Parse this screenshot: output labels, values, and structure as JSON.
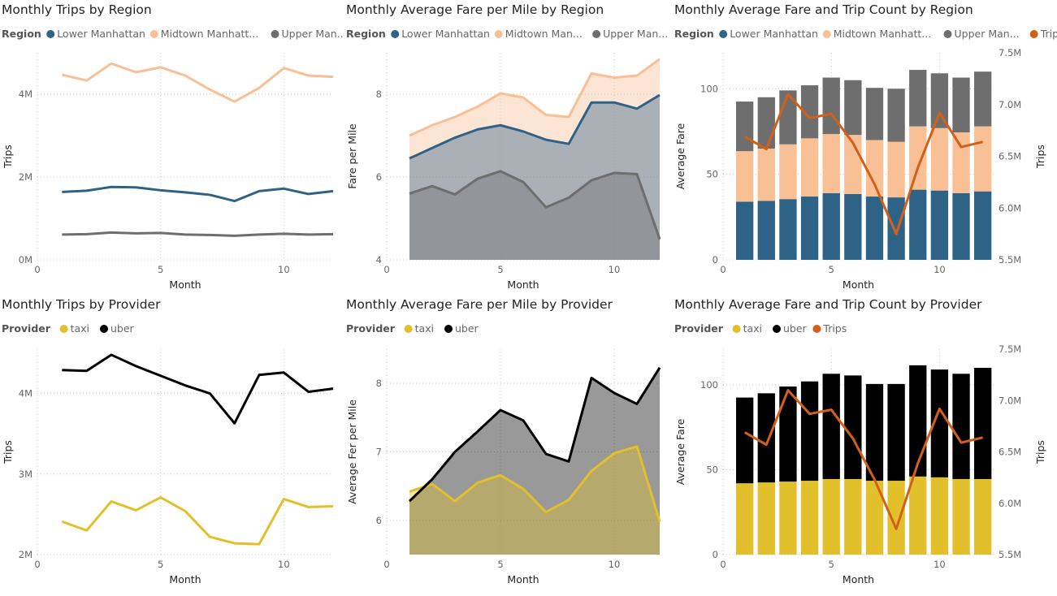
{
  "colors": {
    "lower": "#2E6287",
    "midtown": "#F9BF95",
    "upper": "#6E6E6E",
    "taxi": "#E2C02B",
    "uber": "#000000",
    "trips": "#D26019",
    "gridline": "#c8c8c8",
    "axis_text": "#666666",
    "title_text": "#252423"
  },
  "chart_data": [
    {
      "type": "line",
      "title": "Monthly Trips by Region",
      "legend_title": "Region",
      "xlabel": "Month",
      "ylabel": "Trips",
      "x": [
        1,
        2,
        3,
        4,
        5,
        6,
        7,
        8,
        9,
        10,
        11,
        12
      ],
      "xlim": [
        0,
        12
      ],
      "xticks": [
        "0",
        "5",
        "10"
      ],
      "ylim": [
        0,
        5000000
      ],
      "yticks": [
        {
          "v": 0,
          "label": "0M"
        },
        {
          "v": 2000000,
          "label": "2M"
        },
        {
          "v": 4000000,
          "label": "4M"
        }
      ],
      "series": [
        {
          "name": "Lower Manhattan",
          "legend_label": "Lower Manhattan",
          "color_key": "lower",
          "values": [
            1640000,
            1670000,
            1760000,
            1750000,
            1680000,
            1630000,
            1570000,
            1420000,
            1660000,
            1720000,
            1590000,
            1660000
          ]
        },
        {
          "name": "Midtown Manhattan",
          "legend_label": "Midtown Manhatt...",
          "color_key": "midtown",
          "values": [
            4470000,
            4330000,
            4740000,
            4530000,
            4650000,
            4450000,
            4110000,
            3820000,
            4150000,
            4630000,
            4450000,
            4420000
          ]
        },
        {
          "name": "Upper Manhattan",
          "legend_label": "Upper Man...",
          "color_key": "upper",
          "values": [
            610000,
            620000,
            660000,
            640000,
            650000,
            610000,
            600000,
            580000,
            610000,
            630000,
            610000,
            620000
          ]
        }
      ]
    },
    {
      "type": "area",
      "title": "Monthly Average Fare per Mile by Region",
      "legend_title": "Region",
      "xlabel": "Month",
      "ylabel": "Fare per Mile",
      "x": [
        1,
        2,
        3,
        4,
        5,
        6,
        7,
        8,
        9,
        10,
        11,
        12
      ],
      "xlim": [
        0,
        12
      ],
      "xticks": [
        "0",
        "5",
        "10"
      ],
      "ylim": [
        4,
        9
      ],
      "yticks": [
        {
          "v": 4,
          "label": "4"
        },
        {
          "v": 6,
          "label": "6"
        },
        {
          "v": 8,
          "label": "8"
        }
      ],
      "series": [
        {
          "name": "Lower Manhattan",
          "legend_label": "Lower Manhattan",
          "color_key": "lower",
          "values": [
            6.45,
            6.7,
            6.95,
            7.15,
            7.25,
            7.1,
            6.9,
            6.8,
            7.8,
            7.8,
            7.65,
            7.98
          ]
        },
        {
          "name": "Midtown Manhattan",
          "legend_label": "Midtown Man...",
          "color_key": "midtown",
          "values": [
            7.0,
            7.25,
            7.45,
            7.7,
            8.02,
            7.92,
            7.5,
            7.45,
            8.5,
            8.4,
            8.45,
            8.85
          ]
        },
        {
          "name": "Upper Manhattan",
          "legend_label": "Upper Man...",
          "color_key": "upper",
          "values": [
            5.6,
            5.78,
            5.58,
            5.96,
            6.14,
            5.88,
            5.27,
            5.5,
            5.92,
            6.1,
            6.07,
            4.5
          ]
        }
      ]
    },
    {
      "type": "bar",
      "stacked": true,
      "title": "Monthly Average Fare and Trip Count by Region",
      "legend_title": "Region",
      "xlabel": "Month",
      "ylabel": "Average Fare",
      "y2label": "Trips",
      "x": [
        1,
        2,
        3,
        4,
        5,
        6,
        7,
        8,
        9,
        10,
        11,
        12
      ],
      "xlim": [
        0,
        12.5
      ],
      "xticks": [
        "0",
        "5",
        "10"
      ],
      "ylim": [
        0,
        121
      ],
      "yticks": [
        {
          "v": 0,
          "label": "0"
        },
        {
          "v": 50,
          "label": "50"
        },
        {
          "v": 100,
          "label": "100"
        }
      ],
      "y2lim": [
        5500000,
        7500000
      ],
      "y2ticks": [
        {
          "v": 5500000,
          "label": "5.5M"
        },
        {
          "v": 6000000,
          "label": "6.0M"
        },
        {
          "v": 6500000,
          "label": "6.5M"
        },
        {
          "v": 7000000,
          "label": "7.0M"
        },
        {
          "v": 7500000,
          "label": "7.5M"
        }
      ],
      "series": [
        {
          "name": "Lower Manhattan",
          "legend_label": "Lower Manhattan",
          "color_key": "lower",
          "values": [
            34,
            34.5,
            35.5,
            37,
            39,
            38.5,
            37,
            36.5,
            41,
            40.5,
            39,
            40
          ]
        },
        {
          "name": "Midtown Manhattan",
          "legend_label": "Midtown Manhatt...",
          "color_key": "midtown",
          "values": [
            29.5,
            30.5,
            32,
            34,
            34.5,
            34.5,
            33,
            32.5,
            37,
            36.5,
            35.5,
            38
          ]
        },
        {
          "name": "Upper Manhattan",
          "legend_label": "Upper Man...",
          "color_key": "upper",
          "values": [
            29,
            30,
            31.5,
            31,
            33,
            32,
            30.5,
            31,
            33,
            32,
            32,
            32
          ]
        }
      ],
      "line_series": {
        "name": "Trips",
        "legend_label": "Trips",
        "color_key": "trips",
        "values": [
          6690000,
          6570000,
          7100000,
          6870000,
          6910000,
          6630000,
          6230000,
          5750000,
          6390000,
          6920000,
          6590000,
          6640000
        ]
      }
    },
    {
      "type": "line",
      "title": "Monthly Trips by Provider",
      "legend_title": "Provider",
      "xlabel": "Month",
      "ylabel": "Trips",
      "x": [
        1,
        2,
        3,
        4,
        5,
        6,
        7,
        8,
        9,
        10,
        11,
        12
      ],
      "xlim": [
        0,
        12
      ],
      "xticks": [
        "0",
        "5",
        "10"
      ],
      "ylim": [
        2000000,
        4550000
      ],
      "yticks": [
        {
          "v": 2000000,
          "label": "2M"
        },
        {
          "v": 3000000,
          "label": "3M"
        },
        {
          "v": 4000000,
          "label": "4M"
        }
      ],
      "series": [
        {
          "name": "taxi",
          "legend_label": "taxi",
          "color_key": "taxi",
          "values": [
            2410000,
            2300000,
            2660000,
            2550000,
            2710000,
            2540000,
            2220000,
            2140000,
            2130000,
            2690000,
            2590000,
            2600000
          ]
        },
        {
          "name": "uber",
          "legend_label": "uber",
          "color_key": "uber",
          "values": [
            4290000,
            4280000,
            4480000,
            4340000,
            4220000,
            4100000,
            4000000,
            3630000,
            4230000,
            4260000,
            4020000,
            4060000
          ]
        }
      ]
    },
    {
      "type": "area",
      "title": "Monthly Average Fare per Mile by Provider",
      "legend_title": "Provider",
      "xlabel": "Month",
      "ylabel": "Average Fer per Mile",
      "x": [
        1,
        2,
        3,
        4,
        5,
        6,
        7,
        8,
        9,
        10,
        11,
        12
      ],
      "xlim": [
        0,
        12
      ],
      "xticks": [
        "0",
        "5",
        "10"
      ],
      "ylim": [
        5.5,
        8.5
      ],
      "yticks": [
        {
          "v": 6,
          "label": "6"
        },
        {
          "v": 7,
          "label": "7"
        },
        {
          "v": 8,
          "label": "8"
        }
      ],
      "series": [
        {
          "name": "taxi",
          "legend_label": "taxi",
          "color_key": "taxi",
          "values": [
            6.42,
            6.53,
            6.28,
            6.55,
            6.66,
            6.46,
            6.12,
            6.3,
            6.72,
            6.98,
            7.08,
            5.98
          ]
        },
        {
          "name": "uber",
          "legend_label": "uber",
          "color_key": "uber",
          "values": [
            6.28,
            6.6,
            7.0,
            7.3,
            7.61,
            7.46,
            6.97,
            6.86,
            8.08,
            7.86,
            7.7,
            8.23
          ]
        }
      ]
    },
    {
      "type": "bar",
      "stacked": true,
      "title": "Monthly Average Fare and Trip Count by Provider",
      "legend_title": "Provider",
      "xlabel": "Month",
      "ylabel": "Average Fare",
      "y2label": "Trips",
      "x": [
        1,
        2,
        3,
        4,
        5,
        6,
        7,
        8,
        9,
        10,
        11,
        12
      ],
      "xlim": [
        0,
        12.5
      ],
      "xticks": [
        "0",
        "5",
        "10"
      ],
      "ylim": [
        0,
        121
      ],
      "yticks": [
        {
          "v": 0,
          "label": "0"
        },
        {
          "v": 50,
          "label": "50"
        },
        {
          "v": 100,
          "label": "100"
        }
      ],
      "y2lim": [
        5500000,
        7500000
      ],
      "y2ticks": [
        {
          "v": 5500000,
          "label": "5.5M"
        },
        {
          "v": 6000000,
          "label": "6.0M"
        },
        {
          "v": 6500000,
          "label": "6.5M"
        },
        {
          "v": 7000000,
          "label": "7.0M"
        },
        {
          "v": 7500000,
          "label": "7.5M"
        }
      ],
      "series": [
        {
          "name": "taxi",
          "legend_label": "taxi",
          "color_key": "taxi",
          "values": [
            42,
            42.5,
            43,
            43.5,
            44.5,
            44.5,
            43.5,
            43.5,
            46,
            45.5,
            44.5,
            44.5
          ]
        },
        {
          "name": "uber",
          "legend_label": "uber",
          "color_key": "uber",
          "values": [
            50.5,
            52.5,
            56,
            58.5,
            62,
            61,
            57,
            57,
            65.5,
            63.5,
            62,
            65.5
          ]
        }
      ],
      "line_series": {
        "name": "Trips",
        "legend_label": "Trips",
        "color_key": "trips",
        "values": [
          6690000,
          6570000,
          7100000,
          6870000,
          6910000,
          6630000,
          6230000,
          5750000,
          6390000,
          6920000,
          6590000,
          6640000
        ]
      }
    }
  ]
}
